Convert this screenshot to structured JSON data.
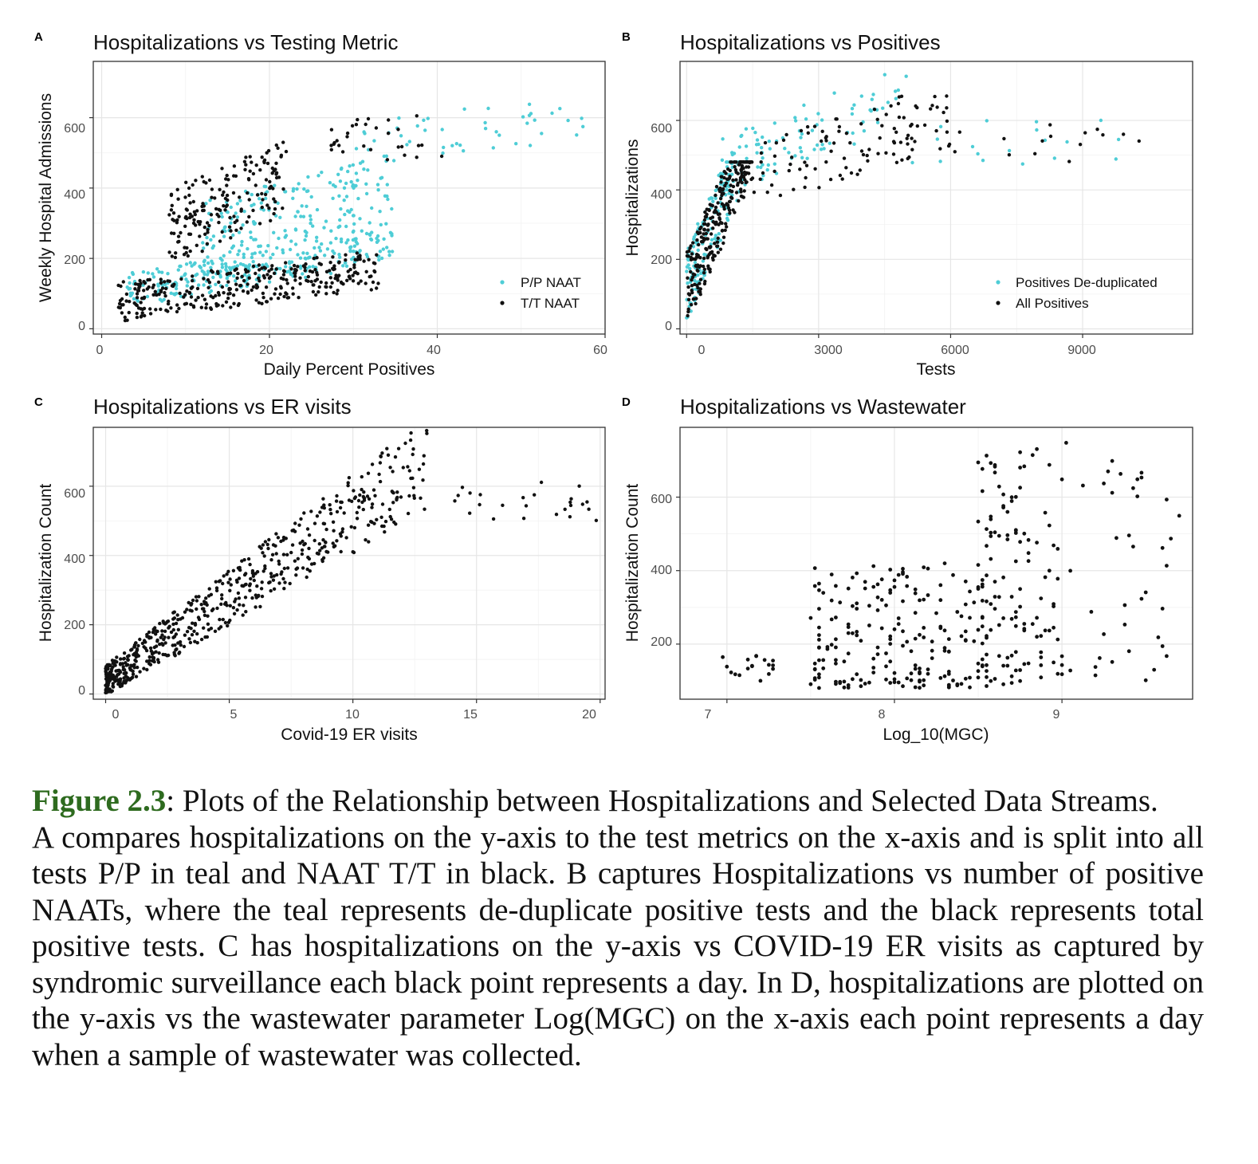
{
  "panels": [
    {
      "letter": "A",
      "title": "Hospitalizations vs Testing Metric",
      "xlabel": "Daily Percent Positives",
      "ylabel": "Weekly Hospital Admissions",
      "xticks": [
        "0",
        "20",
        "40",
        "60"
      ],
      "yticks": [
        "0",
        "200",
        "400",
        "600"
      ],
      "legend": [
        "P/P NAAT",
        "T/T NAAT"
      ]
    },
    {
      "letter": "B",
      "title": "Hospitalizations vs Positives",
      "xlabel": "Tests",
      "ylabel": "Hospitalizations",
      "xticks": [
        "0",
        "3000",
        "6000",
        "9000"
      ],
      "yticks": [
        "0",
        "200",
        "400",
        "600"
      ],
      "legend": [
        "Positives De-duplicated",
        "All Positives"
      ]
    },
    {
      "letter": "C",
      "title": "Hospitalizations vs ER visits",
      "xlabel": "Covid-19 ER visits",
      "ylabel": "Hospitalization Count",
      "xticks": [
        "0",
        "5",
        "10",
        "15",
        "20"
      ],
      "yticks": [
        "0",
        "200",
        "400",
        "600"
      ]
    },
    {
      "letter": "D",
      "title": "Hospitalizations vs Wastewater",
      "xlabel": "Log_10(MGC)",
      "ylabel": "Hospitalization Count",
      "xticks": [
        "7",
        "8",
        "9"
      ],
      "yticks": [
        "200",
        "400",
        "600"
      ]
    }
  ],
  "chart_data": [
    {
      "type": "scatter",
      "title": "Hospitalizations vs Testing Metric",
      "xlabel": "Daily Percent Positives",
      "ylabel": "Weekly Hospital Admissions",
      "xlim": [
        -1,
        60
      ],
      "ylim": [
        -15,
        760
      ],
      "legend_position": "bottom-right",
      "grid": true,
      "colors": {
        "P/P NAAT": "#4ecdd6",
        "T/T NAAT": "#111111"
      },
      "clusters": [
        {
          "series": "P/P NAAT",
          "x": [
            3,
            35
          ],
          "y": [
            60,
            280
          ],
          "slope": 4,
          "n": 260
        },
        {
          "series": "P/P NAAT",
          "x": [
            12,
            35
          ],
          "y": [
            150,
            620
          ],
          "slope": 6,
          "n": 200
        },
        {
          "series": "P/P NAAT",
          "x": [
            30,
            58
          ],
          "y": [
            470,
            760
          ],
          "slope": 2,
          "n": 45
        },
        {
          "series": "T/T NAAT",
          "x": [
            2,
            33
          ],
          "y": [
            20,
            270
          ],
          "slope": 3,
          "n": 330
        },
        {
          "series": "T/T NAAT",
          "x": [
            8,
            22
          ],
          "y": [
            180,
            660
          ],
          "slope": 10,
          "n": 180
        },
        {
          "series": "T/T NAAT",
          "x": [
            27,
            41
          ],
          "y": [
            480,
            760
          ],
          "slope": 0,
          "n": 30
        }
      ]
    },
    {
      "type": "scatter",
      "title": "Hospitalizations vs Positives",
      "xlabel": "Tests",
      "ylabel": "Hospitalizations",
      "xlim": [
        -150,
        11500
      ],
      "ylim": [
        -15,
        770
      ],
      "legend_position": "bottom-right",
      "grid": true,
      "colors": {
        "Positives De-duplicated": "#4ecdd6",
        "All Positives": "#111111"
      },
      "clusters": [
        {
          "series": "Positives De-duplicated",
          "x": [
            0,
            1300
          ],
          "y": [
            20,
            480
          ],
          "slope": 0.3,
          "n": 160
        },
        {
          "series": "Positives De-duplicated",
          "x": [
            800,
            5000
          ],
          "y": [
            380,
            760
          ],
          "slope": 0.05,
          "n": 90
        },
        {
          "series": "Positives De-duplicated",
          "x": [
            5000,
            10000
          ],
          "y": [
            470,
            760
          ],
          "slope": 0,
          "n": 18
        },
        {
          "series": "All Positives",
          "x": [
            0,
            1500
          ],
          "y": [
            10,
            480
          ],
          "slope": 0.28,
          "n": 280
        },
        {
          "series": "All Positives",
          "x": [
            1200,
            6000
          ],
          "y": [
            330,
            760
          ],
          "slope": 0.04,
          "n": 110
        },
        {
          "series": "All Positives",
          "x": [
            6000,
            11000
          ],
          "y": [
            480,
            720
          ],
          "slope": 0,
          "n": 15
        }
      ]
    },
    {
      "type": "scatter",
      "title": "Hospitalizations vs ER visits",
      "xlabel": "Covid-19 ER visits",
      "ylabel": "Hospitalization Count",
      "xlim": [
        -0.5,
        20.2
      ],
      "ylim": [
        -15,
        770
      ],
      "grid": true,
      "colors": {
        "points": "#111111"
      },
      "clusters": [
        {
          "series": "points",
          "x": [
            0,
            13
          ],
          "y": [
            10,
            720
          ],
          "trend": "approximately y = 48x + 40",
          "n": 620
        },
        {
          "series": "points",
          "x": [
            14,
            20
          ],
          "y": [
            500,
            760
          ],
          "trend": "scattered",
          "n": 25
        }
      ]
    },
    {
      "type": "scatter",
      "title": "Hospitalizations vs Wastewater",
      "xlabel": "Log_10(MGC)",
      "ylabel": "Hospitalization Count",
      "xlim": [
        6.72,
        9.78
      ],
      "ylim": [
        50,
        790
      ],
      "grid": true,
      "colors": {
        "points": "#111111"
      },
      "clusters": [
        {
          "series": "points",
          "x": [
            6.95,
            7.3
          ],
          "y": [
            100,
            190
          ],
          "n": 18
        },
        {
          "series": "points",
          "x": [
            7.5,
            8.55
          ],
          "y": [
            80,
            420
          ],
          "n": 200
        },
        {
          "series": "points",
          "x": [
            8.5,
            9.0
          ],
          "y": [
            90,
            760
          ],
          "n": 120
        },
        {
          "series": "points",
          "x": [
            9.0,
            9.7
          ],
          "y": [
            100,
            760
          ],
          "n": 40
        }
      ]
    }
  ],
  "caption": {
    "label": "Figure 2.3",
    "title_rest": ": Plots of the Relationship between Hospitalizations and Selected Data Streams.",
    "body": "A compares hospitalizations on the y-axis to the test metrics on the x-axis and is split into all tests P/P in teal and NAAT T/T in black. B captures Hospitalizations vs number of positive NAATs, where the teal represents de-duplicate positive tests and the black represents total positive tests. C has hospitalizations on the y-axis vs COVID-19 ER visits as captured by syndromic surveillance each black point represents a day. In D, hospitalizations are plotted on the y-axis vs the wastewater parameter Log(MGC) on the x-axis each point represents a day when a sample of wastewater was collected."
  }
}
